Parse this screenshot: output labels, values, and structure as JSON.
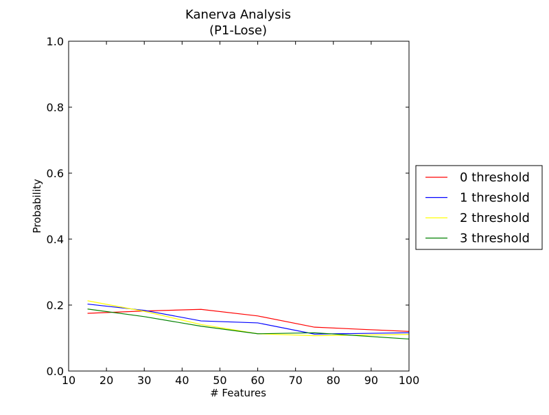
{
  "chart_data": {
    "type": "line",
    "title": "Kanerva Analysis",
    "subtitle": "(P1-Lose)",
    "xlabel": "# Features",
    "ylabel": "Probability",
    "xlim": [
      10,
      100
    ],
    "ylim": [
      0.0,
      1.0
    ],
    "x_ticks": [
      "10",
      "20",
      "30",
      "40",
      "50",
      "60",
      "70",
      "80",
      "90",
      "100"
    ],
    "y_ticks": [
      "0.0",
      "0.2",
      "0.4",
      "0.6",
      "0.8",
      "1.0"
    ],
    "grid": false,
    "legend_position": "center-right outside",
    "x": [
      15,
      30,
      45,
      60,
      75,
      100
    ],
    "series": [
      {
        "name": "0 threshold",
        "color": "#ff0000",
        "values": [
          0.175,
          0.182,
          0.187,
          0.167,
          0.133,
          0.12
        ]
      },
      {
        "name": "1 threshold",
        "color": "#0000ff",
        "values": [
          0.203,
          0.184,
          0.152,
          0.146,
          0.112,
          0.116
        ]
      },
      {
        "name": "2 threshold",
        "color": "#ffff00",
        "values": [
          0.213,
          0.181,
          0.141,
          0.113,
          0.107,
          0.111
        ]
      },
      {
        "name": "3 threshold",
        "color": "#008000",
        "values": [
          0.188,
          0.165,
          0.136,
          0.113,
          0.116,
          0.097
        ]
      }
    ]
  }
}
